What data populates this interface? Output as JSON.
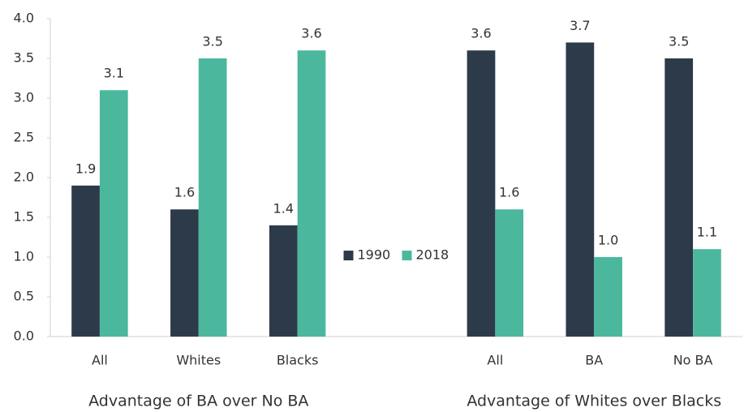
{
  "chart_data": {
    "type": "bar",
    "categories": [
      "All",
      "Whites",
      "Blacks",
      "All",
      "BA",
      "No BA"
    ],
    "group_labels": [
      "Advantage of BA over No BA",
      "Advantage of Whites over Blacks"
    ],
    "series": [
      {
        "name": "1990",
        "color": "#2d3a4a",
        "values": [
          1.9,
          1.6,
          1.4,
          3.6,
          3.7,
          3.5
        ],
        "value_labels": [
          "1.9",
          "1.6",
          "1.4",
          "3.6",
          "3.7",
          "3.5"
        ]
      },
      {
        "name": "2018",
        "color": "#4bb89e",
        "values": [
          3.1,
          3.5,
          3.6,
          1.6,
          1,
          1.1
        ],
        "value_labels": [
          "3.1",
          "3.5",
          "3.6",
          "1.6",
          "1.0",
          "1.1"
        ]
      }
    ],
    "ylim": [
      0,
      4
    ],
    "yticks": [
      {
        "value": 0,
        "label": "0.0"
      },
      0.5,
      {
        "value": 1,
        "label": "1.0"
      },
      1.5,
      {
        "value": 2,
        "label": "2.0"
      },
      2.5,
      {
        "value": 3,
        "label": "3.0"
      },
      3.5,
      {
        "value": 4,
        "label": "4.0"
      }
    ],
    "grid": false,
    "legend": "center"
  }
}
